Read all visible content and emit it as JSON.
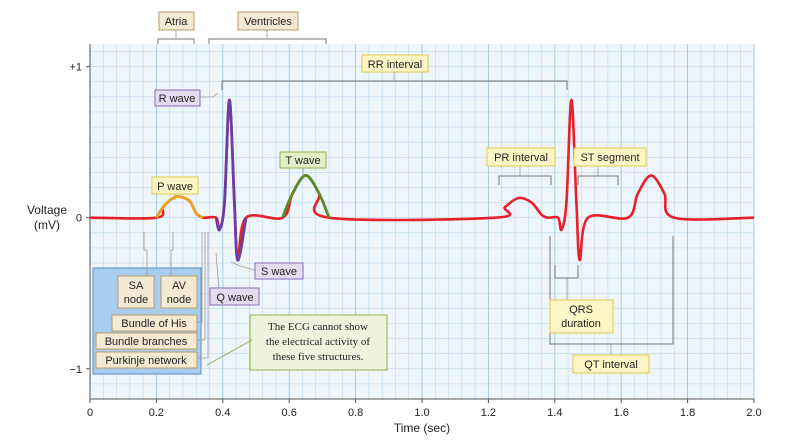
{
  "colors": {
    "grid": "#9fc7e6",
    "plot_bg": "#eef5fb",
    "ecg_line": "#e8202a",
    "p_wave": "#f0a020",
    "qrs": "#6a3fa0",
    "t_wave": "#5a8a2a",
    "label_yellow_bg": "#fff6c8",
    "label_yellow_border": "#e4c84a",
    "label_purple_bg": "#e6dcf2",
    "label_purple_border": "#8a6ab8",
    "label_green_bg": "#e2efc8",
    "label_green_border": "#8fb04a",
    "label_tan_bg": "#f4e9d2",
    "label_tan_border": "#b89a6a",
    "structures_box": "#a9cdee",
    "note_bg": "#eef4dc",
    "note_border": "#8fb04a"
  },
  "chart_data": {
    "type": "line",
    "xlabel": "Time (sec)",
    "ylabel_line1": "Voltage",
    "ylabel_line2": "(mV)",
    "xlim": [
      0,
      2.0
    ],
    "ylim": [
      -1.2,
      1.15
    ],
    "x_ticks": [
      0,
      0.2,
      0.4,
      0.6,
      0.8,
      1.0,
      1.2,
      1.4,
      1.6,
      1.8,
      2.0
    ],
    "x_tick_labels": [
      "0",
      "0.2",
      "0.4",
      "0.6",
      "0.8",
      "1.0",
      "1.2",
      "1.4",
      "1.6",
      "1.8",
      "2.0"
    ],
    "y_ticks": [
      1,
      0,
      -1
    ],
    "y_tick_labels": [
      "+1",
      "0",
      "−1"
    ],
    "series": [
      {
        "x": [
          0.0,
          0.2,
          0.22,
          0.25,
          0.27,
          0.3,
          0.32,
          0.34,
          0.38,
          0.39,
          0.405,
          0.42,
          0.435,
          0.445,
          0.47,
          0.58,
          0.61,
          0.65,
          0.69,
          0.72,
          1.22,
          1.25,
          1.29,
          1.33,
          1.36,
          1.38,
          1.41,
          1.42,
          1.435,
          1.45,
          1.465,
          1.475,
          1.5,
          1.62,
          1.65,
          1.69,
          1.73,
          1.76,
          2.0
        ],
        "y": [
          0,
          0,
          0.07,
          0.13,
          0.14,
          0.11,
          0.03,
          0,
          0,
          -0.08,
          0.1,
          0.78,
          0.1,
          -0.28,
          0,
          0,
          0.16,
          0.28,
          0.16,
          0,
          0,
          0.07,
          0.13,
          0.1,
          0.02,
          0,
          0,
          -0.08,
          0.1,
          0.78,
          0.1,
          -0.28,
          0,
          0,
          0.16,
          0.28,
          0.16,
          0,
          0
        ]
      }
    ]
  },
  "labels": {
    "atria": "Atria",
    "ventricles": "Ventricles",
    "rr_interval": "RR interval",
    "r_wave": "R wave",
    "t_wave": "T wave",
    "p_wave": "P wave",
    "s_wave": "S wave",
    "q_wave": "Q wave",
    "pr_interval": "PR interval",
    "st_segment": "ST segment",
    "qrs_duration_line1": "QRS",
    "qrs_duration_line2": "duration",
    "qt_interval": "QT interval",
    "sa_node_line1": "SA",
    "sa_node_line2": "node",
    "av_node_line1": "AV",
    "av_node_line2": "node",
    "bundle_of_his": "Bundle of His",
    "bundle_branches": "Bundle branches",
    "purkinje_network": "Purkinje network",
    "note_line1": "The ECG cannot show",
    "note_line2": "the electrical activity of",
    "note_line3": "these five structures."
  }
}
